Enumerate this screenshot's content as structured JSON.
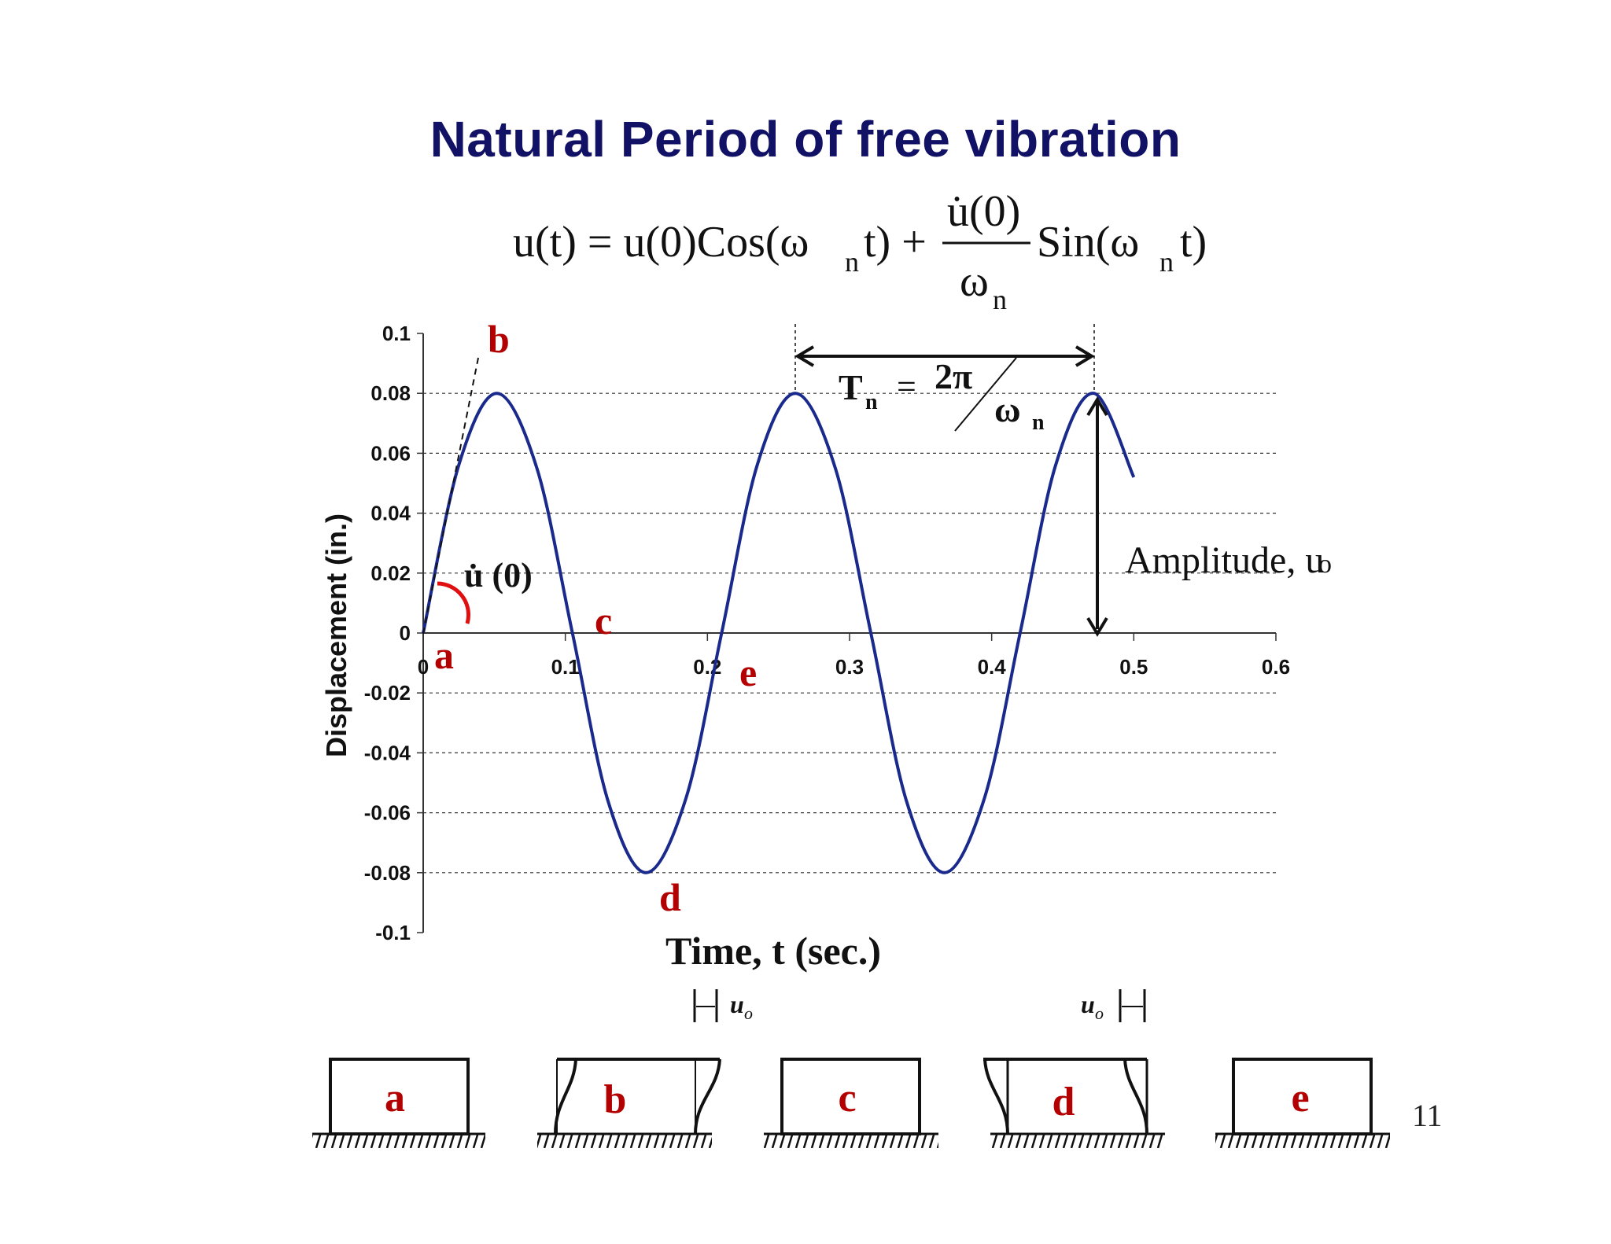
{
  "slide": {
    "title": "Natural Period of free vibration",
    "page_number": "11"
  },
  "formula": {
    "lhs": "u(t) = u(0)Cos(ω",
    "sub_n": "n",
    "t_plus": "t) +",
    "numerator": "u̇(0)",
    "denominator": "ω",
    "sin_part": "Sin(ω",
    "t_close": "t)"
  },
  "annotations": {
    "point_labels": [
      "a",
      "b",
      "c",
      "d",
      "e"
    ],
    "period_T": "T",
    "period_n": "n",
    "equals": "=",
    "two_pi": "2π",
    "omega": "ω",
    "amplitude": "Amplitude, u",
    "amplitude_sub": "o",
    "initial_velocity": "u̇ (0)",
    "u_o_italic": "u",
    "u_o_sub": "o"
  },
  "colors": {
    "curve": "#1a2a8c",
    "title": "#111166",
    "labels": "#b30000"
  },
  "chart_data": {
    "type": "line",
    "title": "",
    "xlabel": "Time, t (sec.)",
    "ylabel": "Displacement (in.)",
    "xlim": [
      0,
      0.6
    ],
    "ylim": [
      -0.1,
      0.1
    ],
    "xticks": [
      "0",
      "0.1",
      "0.2",
      "0.3",
      "0.4",
      "0.5",
      "0.6"
    ],
    "yticks": [
      "0.1",
      "0.08",
      "0.06",
      "0.04",
      "0.02",
      "0",
      "-0.02",
      "-0.04",
      "-0.06",
      "-0.08",
      "-0.1"
    ],
    "grid": "horizontal dashed",
    "series": [
      {
        "x": [
          0,
          0.025,
          0.052,
          0.08,
          0.105,
          0.13,
          0.157,
          0.185,
          0.21,
          0.235,
          0.262,
          0.29,
          0.315,
          0.34,
          0.367,
          0.395,
          0.42,
          0.445,
          0.472,
          0.5
        ],
        "y": [
          0,
          0.056,
          0.08,
          0.055,
          0,
          -0.056,
          -0.08,
          -0.055,
          0,
          0.056,
          0.08,
          0.055,
          0,
          -0.056,
          -0.08,
          -0.055,
          0,
          0.056,
          0.08,
          0.052
        ]
      }
    ],
    "annotated_points": [
      {
        "label": "a",
        "x": 0,
        "y": 0
      },
      {
        "label": "b",
        "x": 0.052,
        "y": 0.08
      },
      {
        "label": "c",
        "x": 0.105,
        "y": 0
      },
      {
        "label": "d",
        "x": 0.157,
        "y": -0.08
      },
      {
        "label": "e",
        "x": 0.21,
        "y": 0
      }
    ],
    "period_marker": {
      "x_start": 0.262,
      "x_end": 0.472
    },
    "amplitude_marker": {
      "x": 0.472,
      "y_from": 0,
      "y_to": 0.08
    }
  }
}
